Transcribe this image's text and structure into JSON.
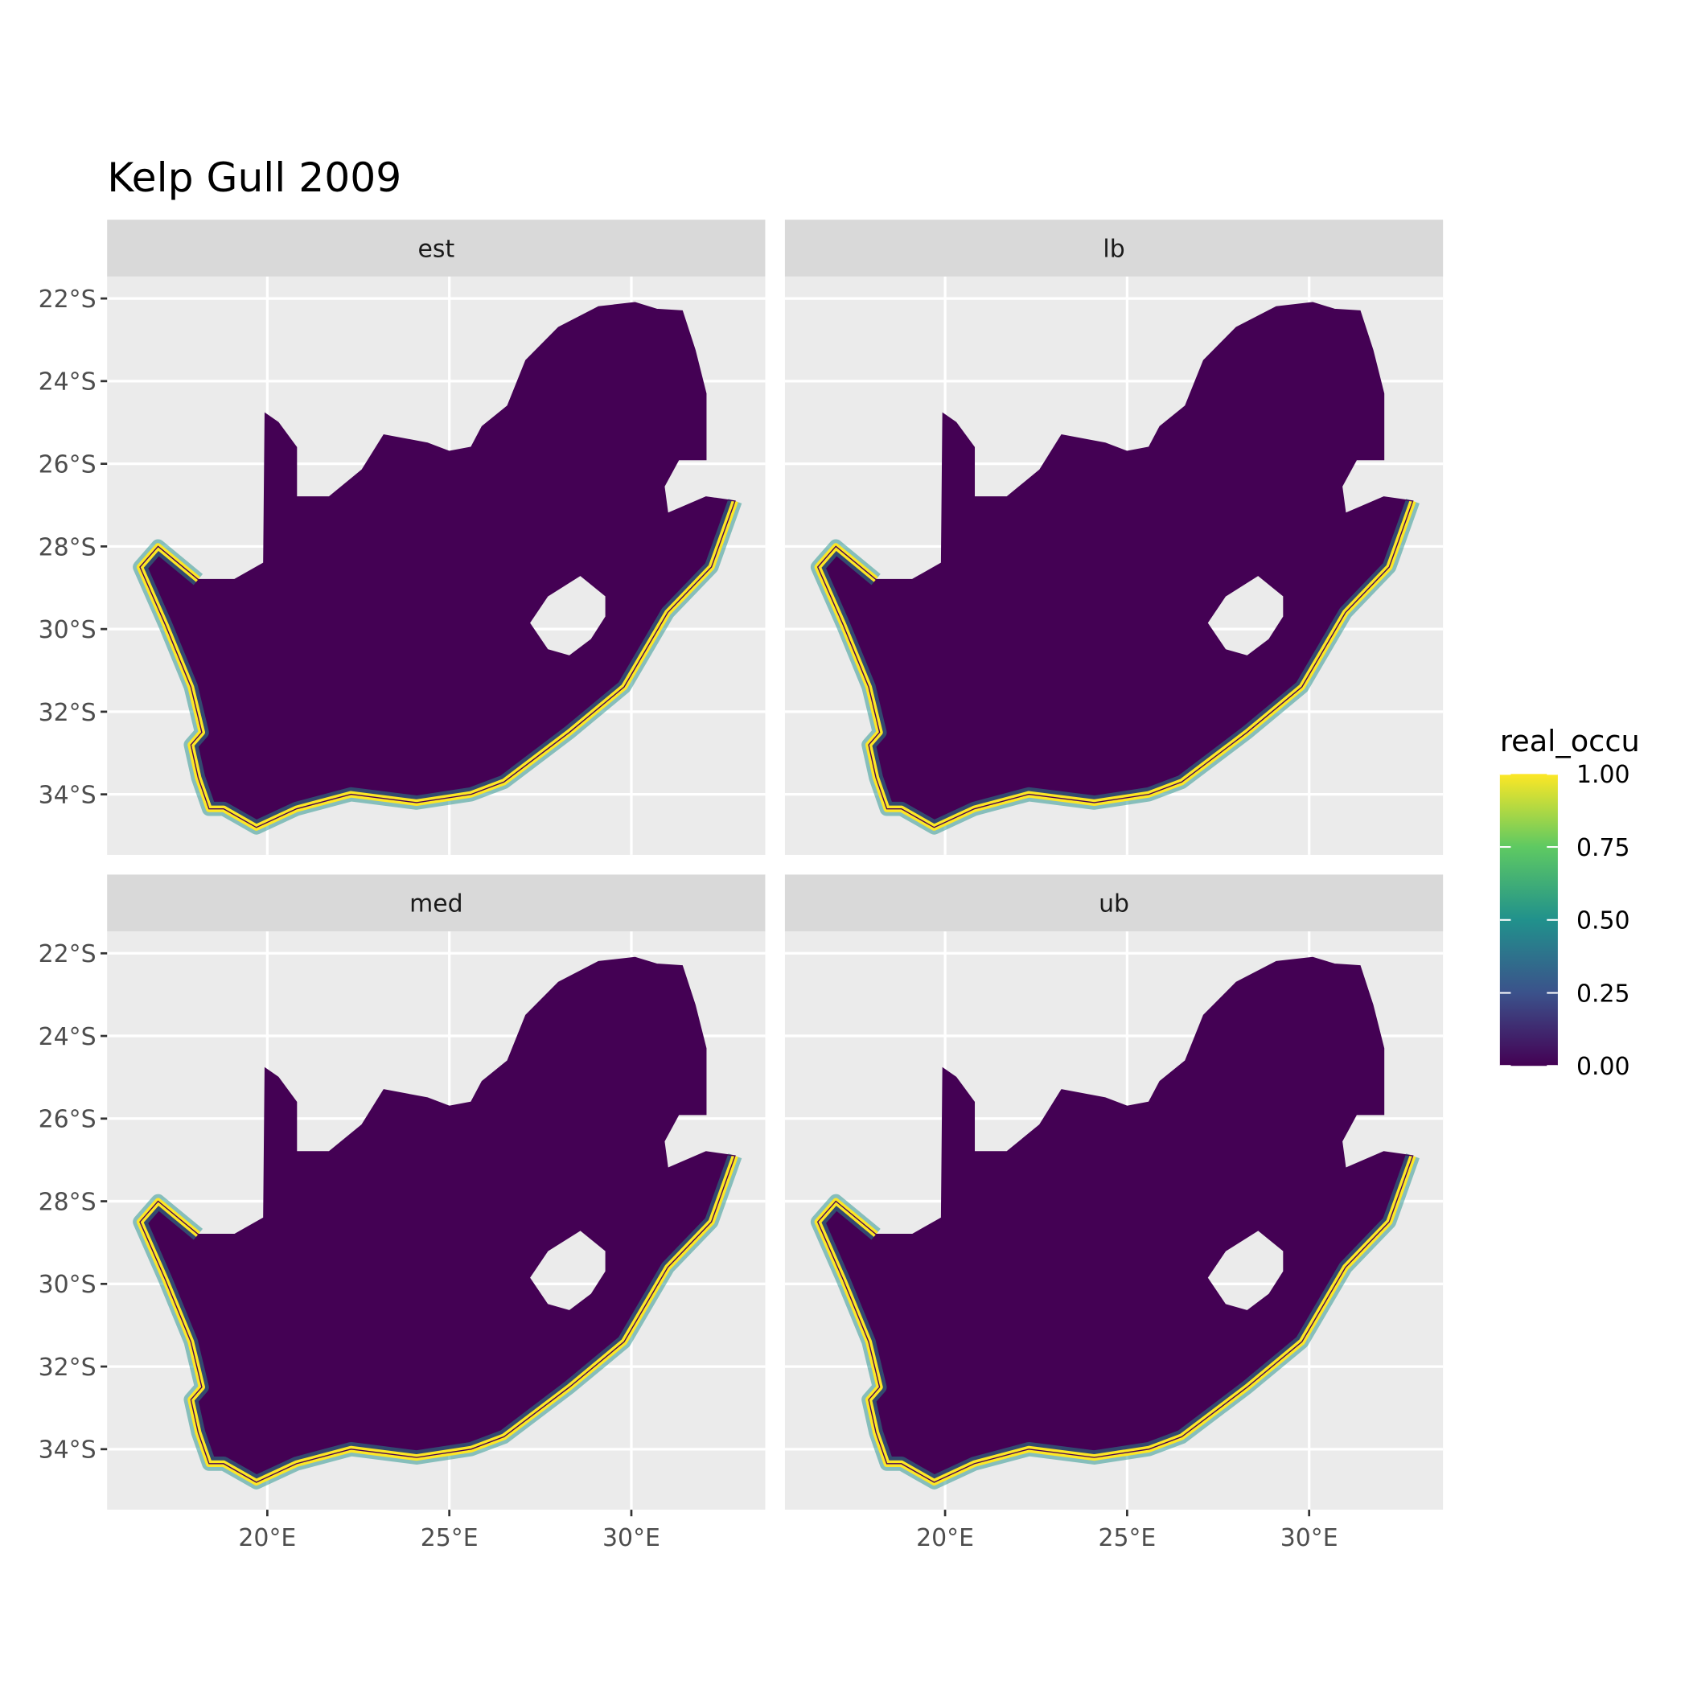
{
  "chart_data": {
    "type": "heatmap",
    "title": "Kelp Gull 2009",
    "xlabel": "",
    "ylabel": "",
    "facets": [
      "est",
      "lb",
      "med",
      "ub"
    ],
    "x_ticks": [
      20,
      25,
      30
    ],
    "x_tick_labels": [
      "20°E",
      "25°E",
      "30°E"
    ],
    "y_ticks": [
      22,
      24,
      26,
      28,
      30,
      32,
      34
    ],
    "y_tick_labels": [
      "22°S",
      "24°S",
      "26°S",
      "28°S",
      "30°S",
      "32°S",
      "34°S"
    ],
    "xlim": [
      15.6,
      33.7
    ],
    "ylim_south": [
      21.47,
      35.47
    ],
    "grid": true,
    "legend": {
      "title": "real_occu",
      "placement": "right",
      "ticks": [
        "1.00",
        "0.75",
        "0.50",
        "0.25",
        "0.00"
      ],
      "range": [
        0,
        1
      ],
      "palette": [
        "#440154",
        "#3b528b",
        "#21918c",
        "#5ec962",
        "#fde725"
      ]
    },
    "colors": {
      "low": "#440154",
      "high": "#fde725",
      "panel_bg": "#ebebeb",
      "strip_bg": "#d9d9d9"
    },
    "interior_value": 0.0,
    "coastal_value": 1.0,
    "outline_lonlat_south": [
      [
        19.94,
        24.78
      ],
      [
        19.9,
        28.4
      ],
      [
        19.1,
        28.8
      ],
      [
        18.1,
        28.8
      ],
      [
        17.0,
        28.0
      ],
      [
        16.5,
        28.5
      ],
      [
        17.2,
        29.9
      ],
      [
        17.9,
        31.4
      ],
      [
        18.2,
        32.5
      ],
      [
        17.9,
        32.8
      ],
      [
        18.1,
        33.6
      ],
      [
        18.4,
        34.35
      ],
      [
        18.8,
        34.35
      ],
      [
        19.7,
        34.8
      ],
      [
        20.8,
        34.35
      ],
      [
        22.3,
        34.0
      ],
      [
        24.1,
        34.2
      ],
      [
        25.6,
        34.0
      ],
      [
        26.5,
        33.7
      ],
      [
        28.3,
        32.5
      ],
      [
        29.8,
        31.4
      ],
      [
        31.0,
        29.6
      ],
      [
        32.2,
        28.5
      ],
      [
        32.85,
        26.9
      ],
      [
        32.05,
        26.8
      ],
      [
        31.0,
        27.2
      ],
      [
        30.9,
        26.55
      ],
      [
        31.3,
        25.9
      ],
      [
        32.05,
        25.9
      ],
      [
        32.05,
        24.3
      ],
      [
        31.75,
        23.25
      ],
      [
        31.4,
        22.3
      ],
      [
        30.7,
        22.26
      ],
      [
        30.1,
        22.1
      ],
      [
        29.1,
        22.2
      ],
      [
        28.0,
        22.7
      ],
      [
        27.1,
        23.5
      ],
      [
        26.6,
        24.6
      ],
      [
        25.9,
        25.1
      ],
      [
        25.6,
        25.6
      ],
      [
        25.0,
        25.7
      ],
      [
        24.4,
        25.5
      ],
      [
        23.2,
        25.3
      ],
      [
        22.6,
        26.15
      ],
      [
        21.7,
        26.8
      ],
      [
        20.8,
        26.8
      ],
      [
        20.8,
        25.6
      ],
      [
        20.3,
        25.0
      ]
    ],
    "hole_lonlat_south": [
      [
        28.6,
        28.7
      ],
      [
        29.3,
        29.2
      ],
      [
        29.3,
        29.7
      ],
      [
        28.9,
        30.25
      ],
      [
        28.3,
        30.65
      ],
      [
        27.7,
        30.5
      ],
      [
        27.2,
        29.85
      ],
      [
        27.7,
        29.2
      ]
    ]
  }
}
